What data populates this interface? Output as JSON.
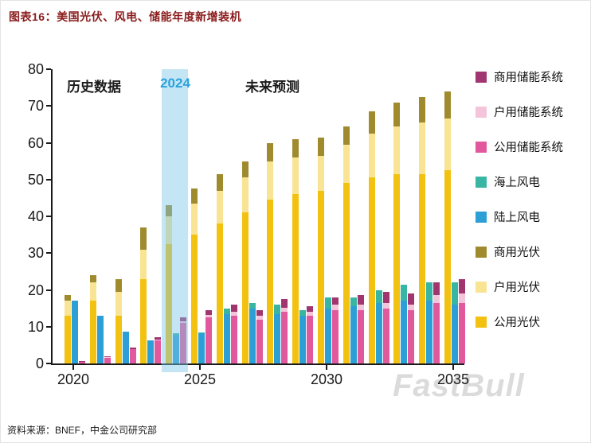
{
  "header": {
    "title": "图表16：美国光伏、风电、储能年度新增装机"
  },
  "source": "资料来源：BNEF，中金公司研究部",
  "watermark": "FastBull",
  "colors": {
    "title": "#8b1c1c",
    "pv_utility": "#F3C110",
    "pv_residential": "#F8E493",
    "pv_commercial": "#9F8A2E",
    "wind_onshore": "#2B9FD6",
    "wind_offshore": "#39B5A3",
    "storage_utility": "#E2589D",
    "storage_residential": "#F4C4DA",
    "storage_commercial": "#A13570",
    "highlight_band": "#7CC5E7",
    "highlight_text": "#2BA3DC"
  },
  "chart_data": {
    "type": "bar",
    "title": "图表16：美国光伏、风电、储能年度新增装机",
    "ylabel": "",
    "xlabel": "",
    "ylim": [
      0,
      80
    ],
    "yticks": [
      0,
      10,
      20,
      30,
      40,
      50,
      60,
      70,
      80
    ],
    "xticks": [
      "2020",
      "2025",
      "2030",
      "2035"
    ],
    "grid": false,
    "legend_position": "right",
    "annotations": {
      "history": "历史数据",
      "highlight_year": "2024",
      "forecast": "未来预测"
    },
    "highlight_year_index": 4,
    "legend": [
      {
        "label": "商用储能系统",
        "color_key": "storage_commercial"
      },
      {
        "label": "户用储能系统",
        "color_key": "storage_residential"
      },
      {
        "label": "公用储能系统",
        "color_key": "storage_utility"
      },
      {
        "label": "海上风电",
        "color_key": "wind_offshore"
      },
      {
        "label": "陆上风电",
        "color_key": "wind_onshore"
      },
      {
        "label": "商用光伏",
        "color_key": "pv_commercial"
      },
      {
        "label": "户用光伏",
        "color_key": "pv_residential"
      },
      {
        "label": "公用光伏",
        "color_key": "pv_utility"
      }
    ],
    "bar_groups_note": "Each year has 3 stacked bars: PV (utility+residential+commercial), wind (onshore+offshore), storage (utility+residential+commercial). Units: GW, estimated from axis.",
    "years": [
      {
        "year": 2020,
        "pv_utility": 13,
        "pv_residential": 4,
        "pv_commercial": 1.5,
        "wind_onshore": 17,
        "wind_offshore": 0,
        "storage_utility": 0.4,
        "storage_residential": 0.1,
        "storage_commercial": 0.2
      },
      {
        "year": 2021,
        "pv_utility": 17,
        "pv_residential": 5,
        "pv_commercial": 2,
        "wind_onshore": 13,
        "wind_offshore": 0,
        "storage_utility": 1.5,
        "storage_residential": 0.2,
        "storage_commercial": 0.3
      },
      {
        "year": 2022,
        "pv_utility": 13,
        "pv_residential": 6.5,
        "pv_commercial": 3.5,
        "wind_onshore": 8.7,
        "wind_offshore": 0,
        "storage_utility": 3.8,
        "storage_residential": 0.2,
        "storage_commercial": 0.3
      },
      {
        "year": 2023,
        "pv_utility": 23,
        "pv_residential": 8,
        "pv_commercial": 6,
        "wind_onshore": 6.3,
        "wind_offshore": 0,
        "storage_utility": 6.2,
        "storage_residential": 0.3,
        "storage_commercial": 0.7
      },
      {
        "year": 2024,
        "pv_utility": 32.5,
        "pv_residential": 7.5,
        "pv_commercial": 3,
        "wind_onshore": 7.8,
        "wind_offshore": 0.5,
        "storage_utility": 11,
        "storage_residential": 0.5,
        "storage_commercial": 1
      },
      {
        "year": 2025,
        "pv_utility": 35,
        "pv_residential": 8.5,
        "pv_commercial": 4,
        "wind_onshore": 8.2,
        "wind_offshore": 0.3,
        "storage_utility": 12.5,
        "storage_residential": 0.7,
        "storage_commercial": 1.3
      },
      {
        "year": 2026,
        "pv_utility": 38,
        "pv_residential": 9,
        "pv_commercial": 4.5,
        "wind_onshore": 13.5,
        "wind_offshore": 1.5,
        "storage_utility": 13,
        "storage_residential": 1,
        "storage_commercial": 2
      },
      {
        "year": 2027,
        "pv_utility": 41,
        "pv_residential": 9.5,
        "pv_commercial": 4.5,
        "wind_onshore": 15,
        "wind_offshore": 1.5,
        "storage_utility": 12,
        "storage_residential": 1,
        "storage_commercial": 1.5
      },
      {
        "year": 2028,
        "pv_utility": 44.5,
        "pv_residential": 10.5,
        "pv_commercial": 5,
        "wind_onshore": 13.5,
        "wind_offshore": 2.5,
        "storage_utility": 14,
        "storage_residential": 1.2,
        "storage_commercial": 2.3
      },
      {
        "year": 2029,
        "pv_utility": 46,
        "pv_residential": 10,
        "pv_commercial": 5,
        "wind_onshore": 13,
        "wind_offshore": 1.5,
        "storage_utility": 13,
        "storage_residential": 1,
        "storage_commercial": 1.5
      },
      {
        "year": 2030,
        "pv_utility": 47,
        "pv_residential": 9.5,
        "pv_commercial": 5,
        "wind_onshore": 15,
        "wind_offshore": 3,
        "storage_utility": 14.5,
        "storage_residential": 1.5,
        "storage_commercial": 2
      },
      {
        "year": 2031,
        "pv_utility": 49,
        "pv_residential": 10.5,
        "pv_commercial": 5,
        "wind_onshore": 15.5,
        "wind_offshore": 2.5,
        "storage_utility": 14.5,
        "storage_residential": 1.5,
        "storage_commercial": 2.5
      },
      {
        "year": 2032,
        "pv_utility": 50.5,
        "pv_residential": 12,
        "pv_commercial": 6,
        "wind_onshore": 16.5,
        "wind_offshore": 3.5,
        "storage_utility": 15,
        "storage_residential": 1.5,
        "storage_commercial": 3
      },
      {
        "year": 2033,
        "pv_utility": 51.5,
        "pv_residential": 13,
        "pv_commercial": 6.5,
        "wind_onshore": 17,
        "wind_offshore": 4.5,
        "storage_utility": 14.5,
        "storage_residential": 1.5,
        "storage_commercial": 3
      },
      {
        "year": 2034,
        "pv_utility": 51.5,
        "pv_residential": 14,
        "pv_commercial": 7,
        "wind_onshore": 17,
        "wind_offshore": 5,
        "storage_utility": 16.5,
        "storage_residential": 2,
        "storage_commercial": 3.5
      },
      {
        "year": 2035,
        "pv_utility": 52.5,
        "pv_residential": 14,
        "pv_commercial": 7.5,
        "wind_onshore": 16,
        "wind_offshore": 6,
        "storage_utility": 16.5,
        "storage_residential": 2.5,
        "storage_commercial": 4
      }
    ]
  }
}
